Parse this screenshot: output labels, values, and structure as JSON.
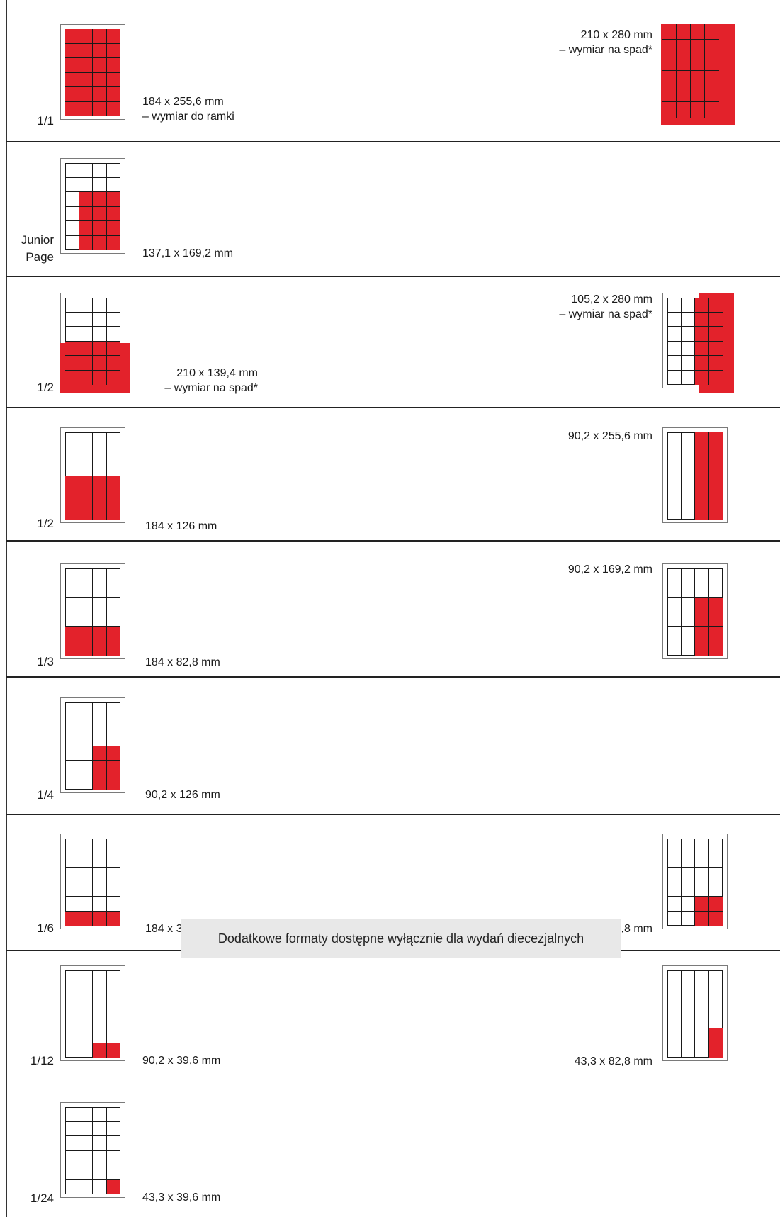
{
  "colors": {
    "accent_red": "#e3222b",
    "grid_line": "#1a1a1a",
    "note_bg": "#e8e8e8"
  },
  "rows": [
    {
      "label_lines": [
        "1/1"
      ],
      "left_text_lines": [
        "184 x 255,6 mm",
        "– wymiar do ramki"
      ],
      "right_text_lines": [
        "210 x 280 mm",
        "– wymiar na spad*"
      ]
    },
    {
      "label_lines": [
        "Junior",
        "Page"
      ],
      "left_text_lines": [
        "137,1 x 169,2 mm"
      ]
    },
    {
      "label_lines": [
        "1/2"
      ],
      "left_text_lines": [
        "210 x 139,4 mm",
        "– wymiar na spad*"
      ],
      "right_text_lines": [
        "105,2 x 280 mm",
        "– wymiar na spad*"
      ]
    },
    {
      "label_lines": [
        "1/2"
      ],
      "left_text_lines": [
        "184 x 126 mm"
      ],
      "right_text_lines": [
        "90,2 x 255,6 mm"
      ]
    },
    {
      "label_lines": [
        "1/3"
      ],
      "left_text_lines": [
        "184 x 82,8 mm"
      ],
      "right_text_lines": [
        "90,2 x 169,2 mm"
      ]
    },
    {
      "label_lines": [
        "1/4"
      ],
      "left_text_lines": [
        "90,2 x 126 mm"
      ]
    },
    {
      "label_lines": [
        "1/6"
      ],
      "left_text_lines": [
        "184 x 39,6 mm"
      ],
      "right_text_lines": [
        "90,2 x 82,8 mm"
      ]
    },
    {
      "label_lines": [
        "1/12"
      ],
      "left_text_lines": [
        "90,2 x 39,6 mm"
      ],
      "right_text_lines": [
        "43,3 x 82,8 mm"
      ]
    },
    {
      "label_lines": [
        "1/24"
      ],
      "left_text_lines": [
        "43,3 x 39,6 mm"
      ]
    }
  ],
  "note": "Dodatkowe formaty dostępne  wyłącznie dla wydań diecezjalnych"
}
